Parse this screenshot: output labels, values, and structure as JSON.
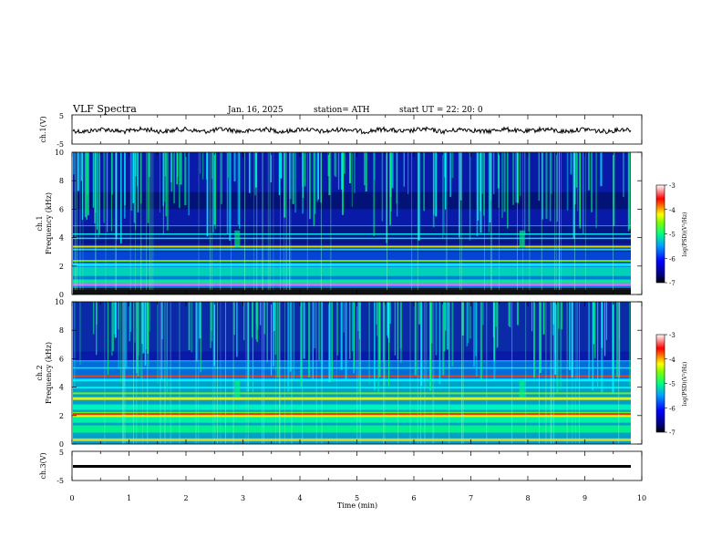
{
  "header": {
    "title": "VLF  Spectra",
    "date": "Jan.  16,  2025",
    "station": "station= ATH",
    "start": "start  UT  =   22: 20: 0"
  },
  "colors": {
    "colormap": [
      "#000080",
      "#0000ff",
      "#0080ff",
      "#00ffff",
      "#00ff80",
      "#80ff00",
      "#ffff00",
      "#ff8000",
      "#ff0000",
      "#ffffff"
    ]
  },
  "chart_data": [
    {
      "type": "line",
      "ylabel": "ch.1(V)",
      "ylim": [
        -5,
        5
      ],
      "yticks": [
        "5",
        "-5"
      ],
      "xlim": [
        0,
        10
      ],
      "description_values": "waveform oscillating around about -0.5 V"
    },
    {
      "type": "heatmap",
      "ylabel": "ch.1\nFrequency  (kHz)",
      "ylim": [
        0,
        10
      ],
      "yticks": [
        "0",
        "2",
        "4",
        "6",
        "8",
        "10"
      ],
      "xlim": [
        0,
        10
      ],
      "colorbar": {
        "label": "log(PSD)(V²/Hz)",
        "range": [
          -7,
          -3
        ],
        "ticks": [
          "-3",
          "-4",
          "-5",
          "-6",
          "-7"
        ]
      }
    },
    {
      "type": "heatmap",
      "ylabel": "ch.2\nFrequency  (kHz)",
      "ylim": [
        0,
        10
      ],
      "yticks": [
        "0",
        "2",
        "4",
        "6",
        "8",
        "10"
      ],
      "xlim": [
        0,
        10
      ],
      "colorbar": {
        "label": "log(PSD)(V²/Hz)",
        "range": [
          -7,
          -3
        ],
        "ticks": [
          "-3",
          "-4",
          "-5",
          "-6",
          "-7"
        ]
      }
    },
    {
      "type": "line",
      "ylabel": "ch.3(V)",
      "ylim": [
        -5,
        5
      ],
      "yticks": [
        "5",
        "-5"
      ],
      "xlim": [
        0,
        10
      ],
      "xlabel": "Time  (min)",
      "xticks": [
        "0",
        "1",
        "2",
        "3",
        "4",
        "5",
        "6",
        "7",
        "8",
        "9",
        "10"
      ]
    }
  ],
  "labels": {
    "ch1_volt": "ch.1(V)",
    "ch1_a": "ch.1",
    "ch1_b": "Frequency  (kHz)",
    "ch2_a": "ch.2",
    "ch2_b": "Frequency  (kHz)",
    "ch3_volt": "ch.3(V)",
    "xlabel": "Time  (min)",
    "cb_label": "log(PSD)(V²/Hz)"
  }
}
